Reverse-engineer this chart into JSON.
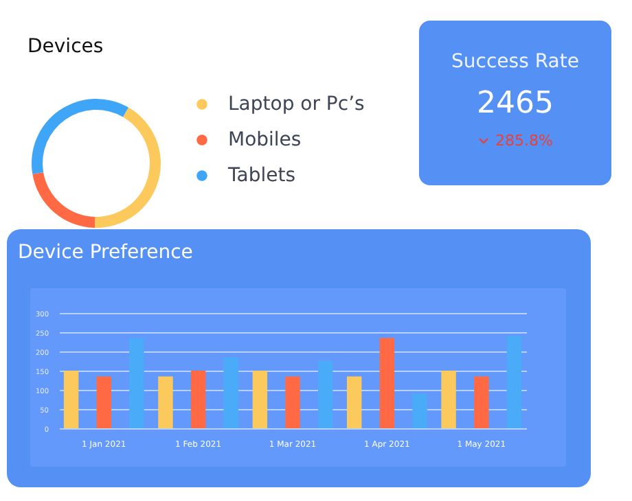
{
  "chart_data": [
    {
      "type": "donut",
      "title": "Devices",
      "categories": [
        "Laptop or Pc’s",
        "Mobiles",
        "Tablets"
      ],
      "values": [
        42,
        22,
        36
      ],
      "colors": [
        "#fcca5c",
        "#ff6a45",
        "#3fa6f7"
      ],
      "legend": "right"
    },
    {
      "type": "other",
      "title": "Success Rate",
      "annotations": [
        "2465",
        "285.8%"
      ]
    },
    {
      "type": "bar",
      "title": "Device Preference",
      "categories": [
        "1 Jan  2021",
        "1 Feb  2021",
        "1 Mar  2021",
        "1 Apr  2021",
        "1 May  2021"
      ],
      "series": [
        {
          "color": "#fcca5c",
          "values": [
            150,
            135,
            150,
            135,
            150
          ]
        },
        {
          "color": "#ff6a45",
          "values": [
            135,
            150,
            135,
            235,
            135
          ]
        },
        {
          "color": "#4aabf8",
          "values": [
            235,
            185,
            175,
            90,
            240
          ]
        }
      ],
      "ylim": [
        0,
        300
      ],
      "yticks": [
        0,
        50,
        100,
        150,
        200,
        250,
        300
      ],
      "grid": "y"
    }
  ]
}
